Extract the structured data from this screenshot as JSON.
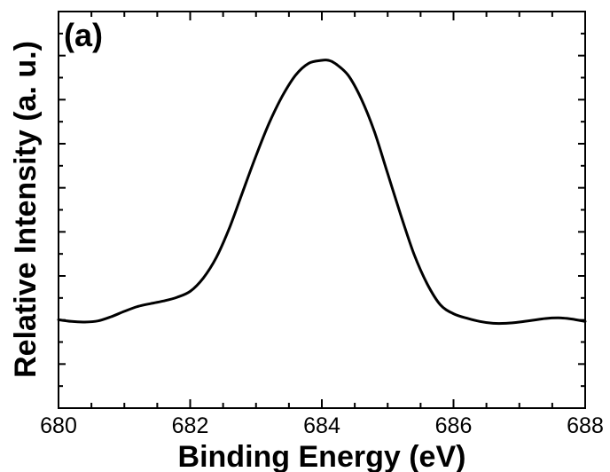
{
  "chart_data": {
    "type": "line",
    "panel_label": "(a)",
    "title": "",
    "xlabel": "Binding Energy (eV)",
    "ylabel": "Relative Intensity (a. u.)",
    "xlim": [
      680,
      688
    ],
    "ylim": [
      0,
      1
    ],
    "xticks": [
      680,
      682,
      684,
      686,
      688
    ],
    "yticks_labeled": false,
    "grid": false,
    "legend": "none",
    "line_color": "#000000",
    "series": [
      {
        "x": [
          680.0,
          680.2,
          680.4,
          680.6,
          680.8,
          681.0,
          681.2,
          681.4,
          681.6,
          681.8,
          682.0,
          682.2,
          682.4,
          682.6,
          682.8,
          683.0,
          683.2,
          683.4,
          683.6,
          683.8,
          684.0,
          684.1,
          684.2,
          684.4,
          684.6,
          684.8,
          685.0,
          685.2,
          685.4,
          685.6,
          685.8,
          686.0,
          686.2,
          686.4,
          686.6,
          686.8,
          687.0,
          687.2,
          687.4,
          687.6,
          687.8,
          688.0
        ],
        "y": [
          0.13,
          0.124,
          0.122,
          0.126,
          0.14,
          0.158,
          0.174,
          0.184,
          0.193,
          0.205,
          0.225,
          0.27,
          0.34,
          0.44,
          0.56,
          0.68,
          0.79,
          0.88,
          0.95,
          0.99,
          1.0,
          1.0,
          0.99,
          0.95,
          0.87,
          0.76,
          0.62,
          0.48,
          0.35,
          0.25,
          0.18,
          0.15,
          0.135,
          0.124,
          0.118,
          0.118,
          0.122,
          0.128,
          0.134,
          0.136,
          0.132,
          0.124
        ]
      }
    ]
  }
}
